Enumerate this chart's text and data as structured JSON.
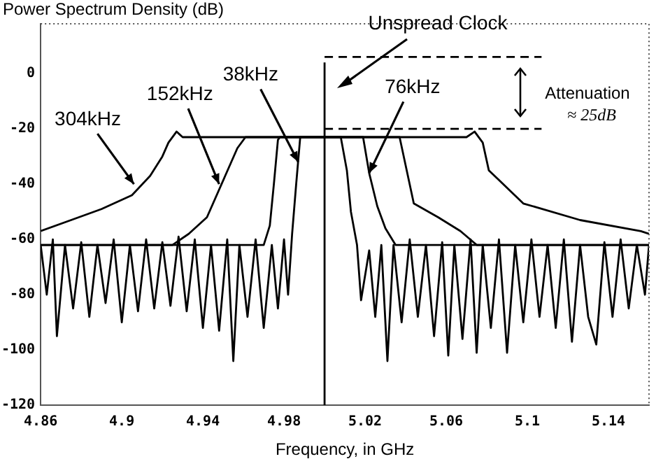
{
  "chart_data": {
    "type": "line",
    "xlabel": "Frequency, in GHz",
    "ylabel": "Power Spectrum Density (dB)",
    "xlim": [
      4.86,
      5.16
    ],
    "ylim": [
      -120,
      18
    ],
    "xticks": [
      4.86,
      4.9,
      4.94,
      4.98,
      5.02,
      5.06,
      5.1,
      5.14
    ],
    "yticks": [
      -120,
      -100,
      -80,
      -60,
      -40,
      -20,
      0
    ],
    "grid": false,
    "marker": "none",
    "series": [
      {
        "color": "#000000",
        "x": [
          4.86,
          4.863,
          4.866,
          4.868,
          4.872,
          4.876,
          4.88,
          4.884,
          4.888,
          4.892,
          4.896,
          4.9,
          4.904,
          4.908,
          4.912,
          4.916,
          4.92,
          4.924,
          4.928,
          4.932,
          4.936,
          4.94,
          4.944,
          4.948,
          4.952,
          4.955,
          4.958,
          4.962,
          4.966,
          4.97,
          4.974,
          4.977,
          4.98,
          4.982,
          4.984,
          4.986,
          4.988,
          5.008,
          5.011,
          5.013,
          5.016,
          5.018,
          5.022,
          5.025,
          5.028,
          5.031,
          5.034,
          5.038,
          5.042,
          5.046,
          5.05,
          5.054,
          5.058,
          5.061,
          5.064,
          5.068,
          5.072,
          5.075,
          5.078,
          5.082,
          5.086,
          5.09,
          5.094,
          5.098,
          5.102,
          5.106,
          5.11,
          5.114,
          5.118,
          5.122,
          5.126,
          5.13,
          5.134,
          5.138,
          5.142,
          5.146,
          5.15,
          5.154,
          5.158,
          5.16
        ],
        "values": [
          -62,
          -80,
          -60,
          -95,
          -62,
          -85,
          -61,
          -88,
          -62,
          -83,
          -60,
          -90,
          -62,
          -86,
          -60,
          -85,
          -61,
          -84,
          -59,
          -86,
          -60,
          -92,
          -62,
          -93,
          -60,
          -104,
          -62,
          -88,
          -60,
          -92,
          -62,
          -85,
          -60,
          -80,
          -58,
          -40,
          -23,
          -23,
          -35,
          -50,
          -62,
          -82,
          -64,
          -88,
          -62,
          -104,
          -62,
          -90,
          -60,
          -88,
          -62,
          -95,
          -61,
          -102,
          -62,
          -96,
          -60,
          -101,
          -62,
          -92,
          -60,
          -101,
          -62,
          -90,
          -60,
          -88,
          -62,
          -92,
          -60,
          -97,
          -62,
          -88,
          -98,
          -61,
          -88,
          -60,
          -85,
          -62,
          -80,
          -62
        ]
      },
      {
        "color": "#000000",
        "x": [
          4.86,
          4.97,
          4.973,
          4.975,
          4.977,
          4.978,
          5.019,
          5.022,
          5.026,
          5.03,
          5.035,
          5.16
        ],
        "values": [
          -62,
          -62,
          -55,
          -40,
          -24,
          -23,
          -23,
          -36,
          -48,
          -56,
          -62,
          -62
        ]
      },
      {
        "color": "#000000",
        "x": [
          4.86,
          4.925,
          4.933,
          4.942,
          4.951,
          4.957,
          4.961,
          5.037,
          5.044,
          5.056,
          5.067,
          5.075,
          5.16
        ],
        "values": [
          -62,
          -62,
          -58,
          -52,
          -37,
          -27,
          -23,
          -23,
          -47,
          -52,
          -57,
          -62,
          -62
        ]
      },
      {
        "color": "#000000",
        "x": [
          4.86,
          4.875,
          4.89,
          4.905,
          4.914,
          4.92,
          4.923,
          4.927,
          4.93,
          5.07,
          5.074,
          5.078,
          5.081,
          5.098,
          5.126,
          5.156,
          5.16
        ],
        "values": [
          -57,
          -53,
          -49,
          -44,
          -37,
          -30,
          -25,
          -21,
          -23,
          -23,
          -21,
          -25,
          -35,
          -47,
          -53,
          -57,
          -58
        ]
      },
      {
        "color": "#000000",
        "x": [
          5.0,
          5.0
        ],
        "values": [
          -120,
          4
        ]
      },
      {
        "color": "#000000",
        "line_style": "dashed",
        "x": [
          5.0,
          5.107
        ],
        "values": [
          6,
          6
        ]
      },
      {
        "color": "#000000",
        "line_style": "dashed",
        "x": [
          5.0,
          5.107
        ],
        "values": [
          -20,
          -20
        ]
      }
    ],
    "annotations": [
      {
        "text": "304kHz",
        "x": 4.906,
        "y": -40
      },
      {
        "text": "152kHz",
        "x": 4.948,
        "y": -40
      },
      {
        "text": "38kHz",
        "x": 4.987,
        "y": -32
      },
      "Unspread Clock",
      {
        "text": "76kHz",
        "x": 5.022,
        "y": -36
      },
      "Attenuation ≈ 25dB"
    ]
  }
}
